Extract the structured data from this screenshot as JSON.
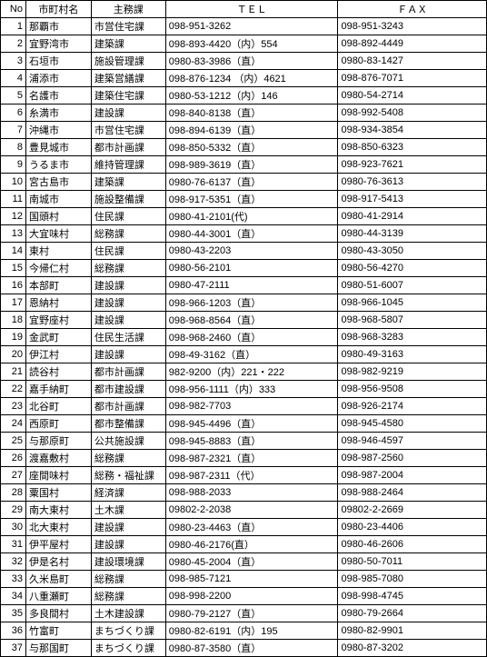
{
  "headers": {
    "no": "No",
    "city": "市町村名",
    "dept": "主務課",
    "tel": "ＴＥＬ",
    "fax": "ＦＡＸ"
  },
  "rows": [
    {
      "no": 1,
      "city": "那覇市",
      "dept": "市営住宅課",
      "tel": "098-951-3262",
      "fax": "098-951-3243"
    },
    {
      "no": 2,
      "city": "宜野湾市",
      "dept": "建築課",
      "tel": "098-893-4420（内）554",
      "fax": "098-892-4449"
    },
    {
      "no": 3,
      "city": "石垣市",
      "dept": "施設管理課",
      "tel": "0980-83-3986（直）",
      "fax": "0980-83-1427"
    },
    {
      "no": 4,
      "city": "浦添市",
      "dept": "建築営繕課",
      "tel": "098-876-1234 （内）4621",
      "fax": "098-876-7071"
    },
    {
      "no": 5,
      "city": "名護市",
      "dept": "建築住宅課",
      "tel": "0980-53-1212（内）146",
      "fax": "0980-54-2714"
    },
    {
      "no": 6,
      "city": "糸満市",
      "dept": "建設課",
      "tel": "098-840-8138（直）",
      "fax": "098-992-5408"
    },
    {
      "no": 7,
      "city": "沖縄市",
      "dept": "市営住宅課",
      "tel": "098-894-6139（直）",
      "fax": "098-934-3854"
    },
    {
      "no": 8,
      "city": "豊見城市",
      "dept": "都市計画課",
      "tel": "098-850-5332（直）",
      "fax": "098-850-6323"
    },
    {
      "no": 9,
      "city": "うるま市",
      "dept": "維持管理課",
      "tel": "098-989-3619（直）",
      "fax": "098-923-7621"
    },
    {
      "no": 10,
      "city": "宮古島市",
      "dept": "建築課",
      "tel": "0980-76-6137（直）",
      "fax": "0980-76-3613"
    },
    {
      "no": 11,
      "city": "南城市",
      "dept": "施設整備課",
      "tel": "098-917-5351（直）",
      "fax": "098-917-5413"
    },
    {
      "no": 12,
      "city": "国頭村",
      "dept": "住民課",
      "tel": "0980-41-2101(代)",
      "fax": "0980-41-2914"
    },
    {
      "no": 13,
      "city": "大宜味村",
      "dept": "総務課",
      "tel": "0980-44-3001（直）",
      "fax": "0980-44-3139"
    },
    {
      "no": 14,
      "city": "東村",
      "dept": "住民課",
      "tel": "0980-43-2203",
      "fax": "0980-43-3050"
    },
    {
      "no": 15,
      "city": "今帰仁村",
      "dept": "総務課",
      "tel": "0980-56-2101",
      "fax": "0980-56-4270"
    },
    {
      "no": 16,
      "city": "本部町",
      "dept": "建設課",
      "tel": "0980-47-2111",
      "fax": "0980-51-6007"
    },
    {
      "no": 17,
      "city": "恩納村",
      "dept": "建設課",
      "tel": "098-966-1203（直）",
      "fax": "098-966-1045"
    },
    {
      "no": 18,
      "city": "宜野座村",
      "dept": "建設課",
      "tel": "098-968-8564（直）",
      "fax": "098-968-5807"
    },
    {
      "no": 19,
      "city": "金武町",
      "dept": "住民生活課",
      "tel": "098-968-2460（直）",
      "fax": "098-968-3283"
    },
    {
      "no": 20,
      "city": "伊江村",
      "dept": "建設課",
      "tel": "098-49-3162（直）",
      "fax": "0980-49-3163"
    },
    {
      "no": 21,
      "city": "読谷村",
      "dept": "都市計画課",
      "tel": "982-9200（内）221・222",
      "fax": "098-982-9219"
    },
    {
      "no": 22,
      "city": "嘉手納町",
      "dept": "都市建設課",
      "tel": "098-956-1111（内）333",
      "fax": "098-956-9508"
    },
    {
      "no": 23,
      "city": "北谷町",
      "dept": "都市計画課",
      "tel": "098-982-7703",
      "fax": "098-926-2174"
    },
    {
      "no": 24,
      "city": "西原町",
      "dept": "都市整備課",
      "tel": "098-945-4496（直）",
      "fax": "098-945-4580"
    },
    {
      "no": 25,
      "city": "与那原町",
      "dept": "公共施設課",
      "tel": "098-945-8883（直）",
      "fax": "098-946-4597"
    },
    {
      "no": 26,
      "city": "渡嘉敷村",
      "dept": "総務課",
      "tel": "098-987-2321（直）",
      "fax": "098-987-2560"
    },
    {
      "no": 27,
      "city": "座間味村",
      "dept": "総務・福祉課",
      "tel": "098-987-2311（代）",
      "fax": "098-987-2004"
    },
    {
      "no": 28,
      "city": "粟国村",
      "dept": "経済課",
      "tel": "098-988-2033",
      "fax": "098-988-2464"
    },
    {
      "no": 29,
      "city": "南大東村",
      "dept": "土木課",
      "tel": "09802-2-2038",
      "fax": "09802-2-2669"
    },
    {
      "no": 30,
      "city": "北大東村",
      "dept": "建設課",
      "tel": "0980-23-4463（直）",
      "fax": "0980-23-4406"
    },
    {
      "no": 31,
      "city": "伊平屋村",
      "dept": "建設課",
      "tel": "0980-46-2176(直）",
      "fax": "0980-46-2606"
    },
    {
      "no": 32,
      "city": "伊是名村",
      "dept": "建設環境課",
      "tel": "0980-45-2004（直）",
      "fax": "0980-50-7011"
    },
    {
      "no": 33,
      "city": "久米島町",
      "dept": "総務課",
      "tel": "098-985-7121",
      "fax": "098-985-7080"
    },
    {
      "no": 34,
      "city": "八重瀬町",
      "dept": "総務課",
      "tel": "098-998-2200",
      "fax": "098-998-4745"
    },
    {
      "no": 35,
      "city": "多良間村",
      "dept": "土木建設課",
      "tel": "0980-79-2127（直）",
      "fax": "0980-79-2664"
    },
    {
      "no": 36,
      "city": "竹富町",
      "dept": "まちづくり課",
      "tel": "0980-82-6191（内）195",
      "fax": "0980-82-9901"
    },
    {
      "no": 37,
      "city": "与那国町",
      "dept": "まちづくり課",
      "tel": "0980-87-3580（直）",
      "fax": "0980-87-3202"
    }
  ]
}
